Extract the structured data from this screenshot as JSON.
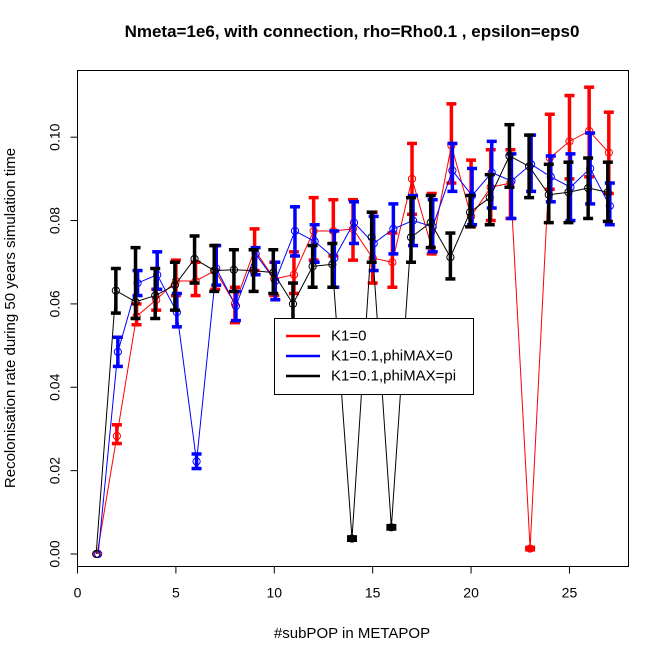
{
  "chart_data": {
    "type": "line",
    "title": "Nmeta=1e6,  with connection, rho=Rho0.1 , epsilon=eps0",
    "xlabel": "#subPOP in METAPOP",
    "ylabel": "Recolonisation rate during 50 years simulation time",
    "xlim": [
      0,
      28
    ],
    "ylim": [
      -0.003,
      0.116
    ],
    "x_ticks": [
      0,
      5,
      10,
      15,
      20,
      25
    ],
    "x_tick_labels": [
      "0",
      "5",
      "10",
      "15",
      "20",
      "25"
    ],
    "y_ticks": [
      0.0,
      0.02,
      0.04,
      0.06,
      0.08,
      0.1
    ],
    "y_tick_labels": [
      "0.00",
      "0.02",
      "0.04",
      "0.06",
      "0.08",
      "0.10"
    ],
    "grid": false,
    "legend_position": "center",
    "x": [
      1,
      2,
      3,
      4,
      5,
      6,
      7,
      8,
      9,
      10,
      11,
      12,
      13,
      14,
      15,
      16,
      17,
      18,
      19,
      20,
      21,
      22,
      23,
      24,
      25,
      26,
      27
    ],
    "series": [
      {
        "name": "K1=0",
        "color": "#ff0000",
        "values": [
          0.0,
          0.0283,
          0.057,
          0.061,
          0.0655,
          0.0655,
          0.068,
          0.06,
          0.073,
          0.066,
          0.067,
          0.0775,
          0.0775,
          0.078,
          0.071,
          0.07,
          0.09,
          0.0735,
          0.098,
          0.081,
          0.088,
          0.089,
          0.0013,
          0.095,
          0.099,
          0.1015,
          0.0963
        ],
        "err_low": [
          0.0,
          0.0265,
          0.055,
          0.0585,
          0.062,
          0.062,
          0.0635,
          0.0555,
          0.068,
          0.062,
          0.0625,
          0.0705,
          0.0715,
          0.0705,
          0.065,
          0.064,
          0.0815,
          0.072,
          0.089,
          0.0785,
          0.08,
          0.0805,
          0.001,
          0.0875,
          0.09,
          0.0905,
          0.0865
        ],
        "err_high": [
          0.0,
          0.031,
          0.06,
          0.0635,
          0.0705,
          0.07,
          0.074,
          0.064,
          0.078,
          0.07,
          0.0725,
          0.0855,
          0.085,
          0.085,
          0.082,
          0.077,
          0.0985,
          0.0865,
          0.108,
          0.0945,
          0.097,
          0.097,
          0.0016,
          0.1055,
          0.11,
          0.112,
          0.106
        ]
      },
      {
        "name": "K1=0.1,phiMAX=0",
        "color": "#0000ff",
        "values": [
          0.0,
          0.0485,
          0.065,
          0.067,
          0.058,
          0.0222,
          0.0685,
          0.0595,
          0.072,
          0.0655,
          0.0775,
          0.075,
          0.071,
          0.0795,
          0.0745,
          0.078,
          0.08,
          0.0785,
          0.092,
          0.086,
          0.0915,
          0.0895,
          0.0935,
          0.0905,
          0.088,
          0.0925,
          0.0835
        ],
        "err_low": [
          0.0,
          0.045,
          0.062,
          0.0635,
          0.0545,
          0.0205,
          0.0645,
          0.056,
          0.067,
          0.061,
          0.0715,
          0.07,
          0.064,
          0.0745,
          0.068,
          0.072,
          0.074,
          0.0725,
          0.087,
          0.079,
          0.083,
          0.0805,
          0.087,
          0.0845,
          0.08,
          0.084,
          0.079
        ],
        "err_high": [
          0.0,
          0.052,
          0.068,
          0.0725,
          0.0625,
          0.024,
          0.074,
          0.063,
          0.0735,
          0.07,
          0.0833,
          0.079,
          0.0775,
          0.0845,
          0.081,
          0.084,
          0.086,
          0.085,
          0.0985,
          0.0925,
          0.099,
          0.096,
          0.1005,
          0.0955,
          0.096,
          0.101,
          0.089
        ]
      },
      {
        "name": "K1=0.1,phiMAX=pi",
        "color": "#000000",
        "values": [
          0.0,
          0.0632,
          0.0605,
          0.062,
          0.0645,
          0.0708,
          0.068,
          0.0682,
          0.068,
          0.0675,
          0.06,
          0.069,
          0.0695,
          0.0037,
          0.076,
          0.0064,
          0.076,
          0.0795,
          0.0712,
          0.082,
          0.0855,
          0.0955,
          0.093,
          0.0862,
          0.0868,
          0.0878,
          0.0868
        ],
        "err_low": [
          0.0,
          0.0578,
          0.0565,
          0.0565,
          0.0585,
          0.065,
          0.063,
          0.063,
          0.063,
          0.0625,
          0.055,
          0.064,
          0.064,
          0.0033,
          0.07,
          0.006,
          0.07,
          0.0735,
          0.066,
          0.0785,
          0.079,
          0.088,
          0.0855,
          0.0795,
          0.0795,
          0.0805,
          0.0798
        ],
        "err_high": [
          0.0,
          0.0685,
          0.0735,
          0.0685,
          0.07,
          0.0763,
          0.074,
          0.073,
          0.073,
          0.073,
          0.065,
          0.074,
          0.0745,
          0.0041,
          0.082,
          0.0068,
          0.0855,
          0.086,
          0.077,
          0.086,
          0.091,
          0.103,
          0.1005,
          0.0935,
          0.094,
          0.095,
          0.094
        ]
      }
    ]
  }
}
